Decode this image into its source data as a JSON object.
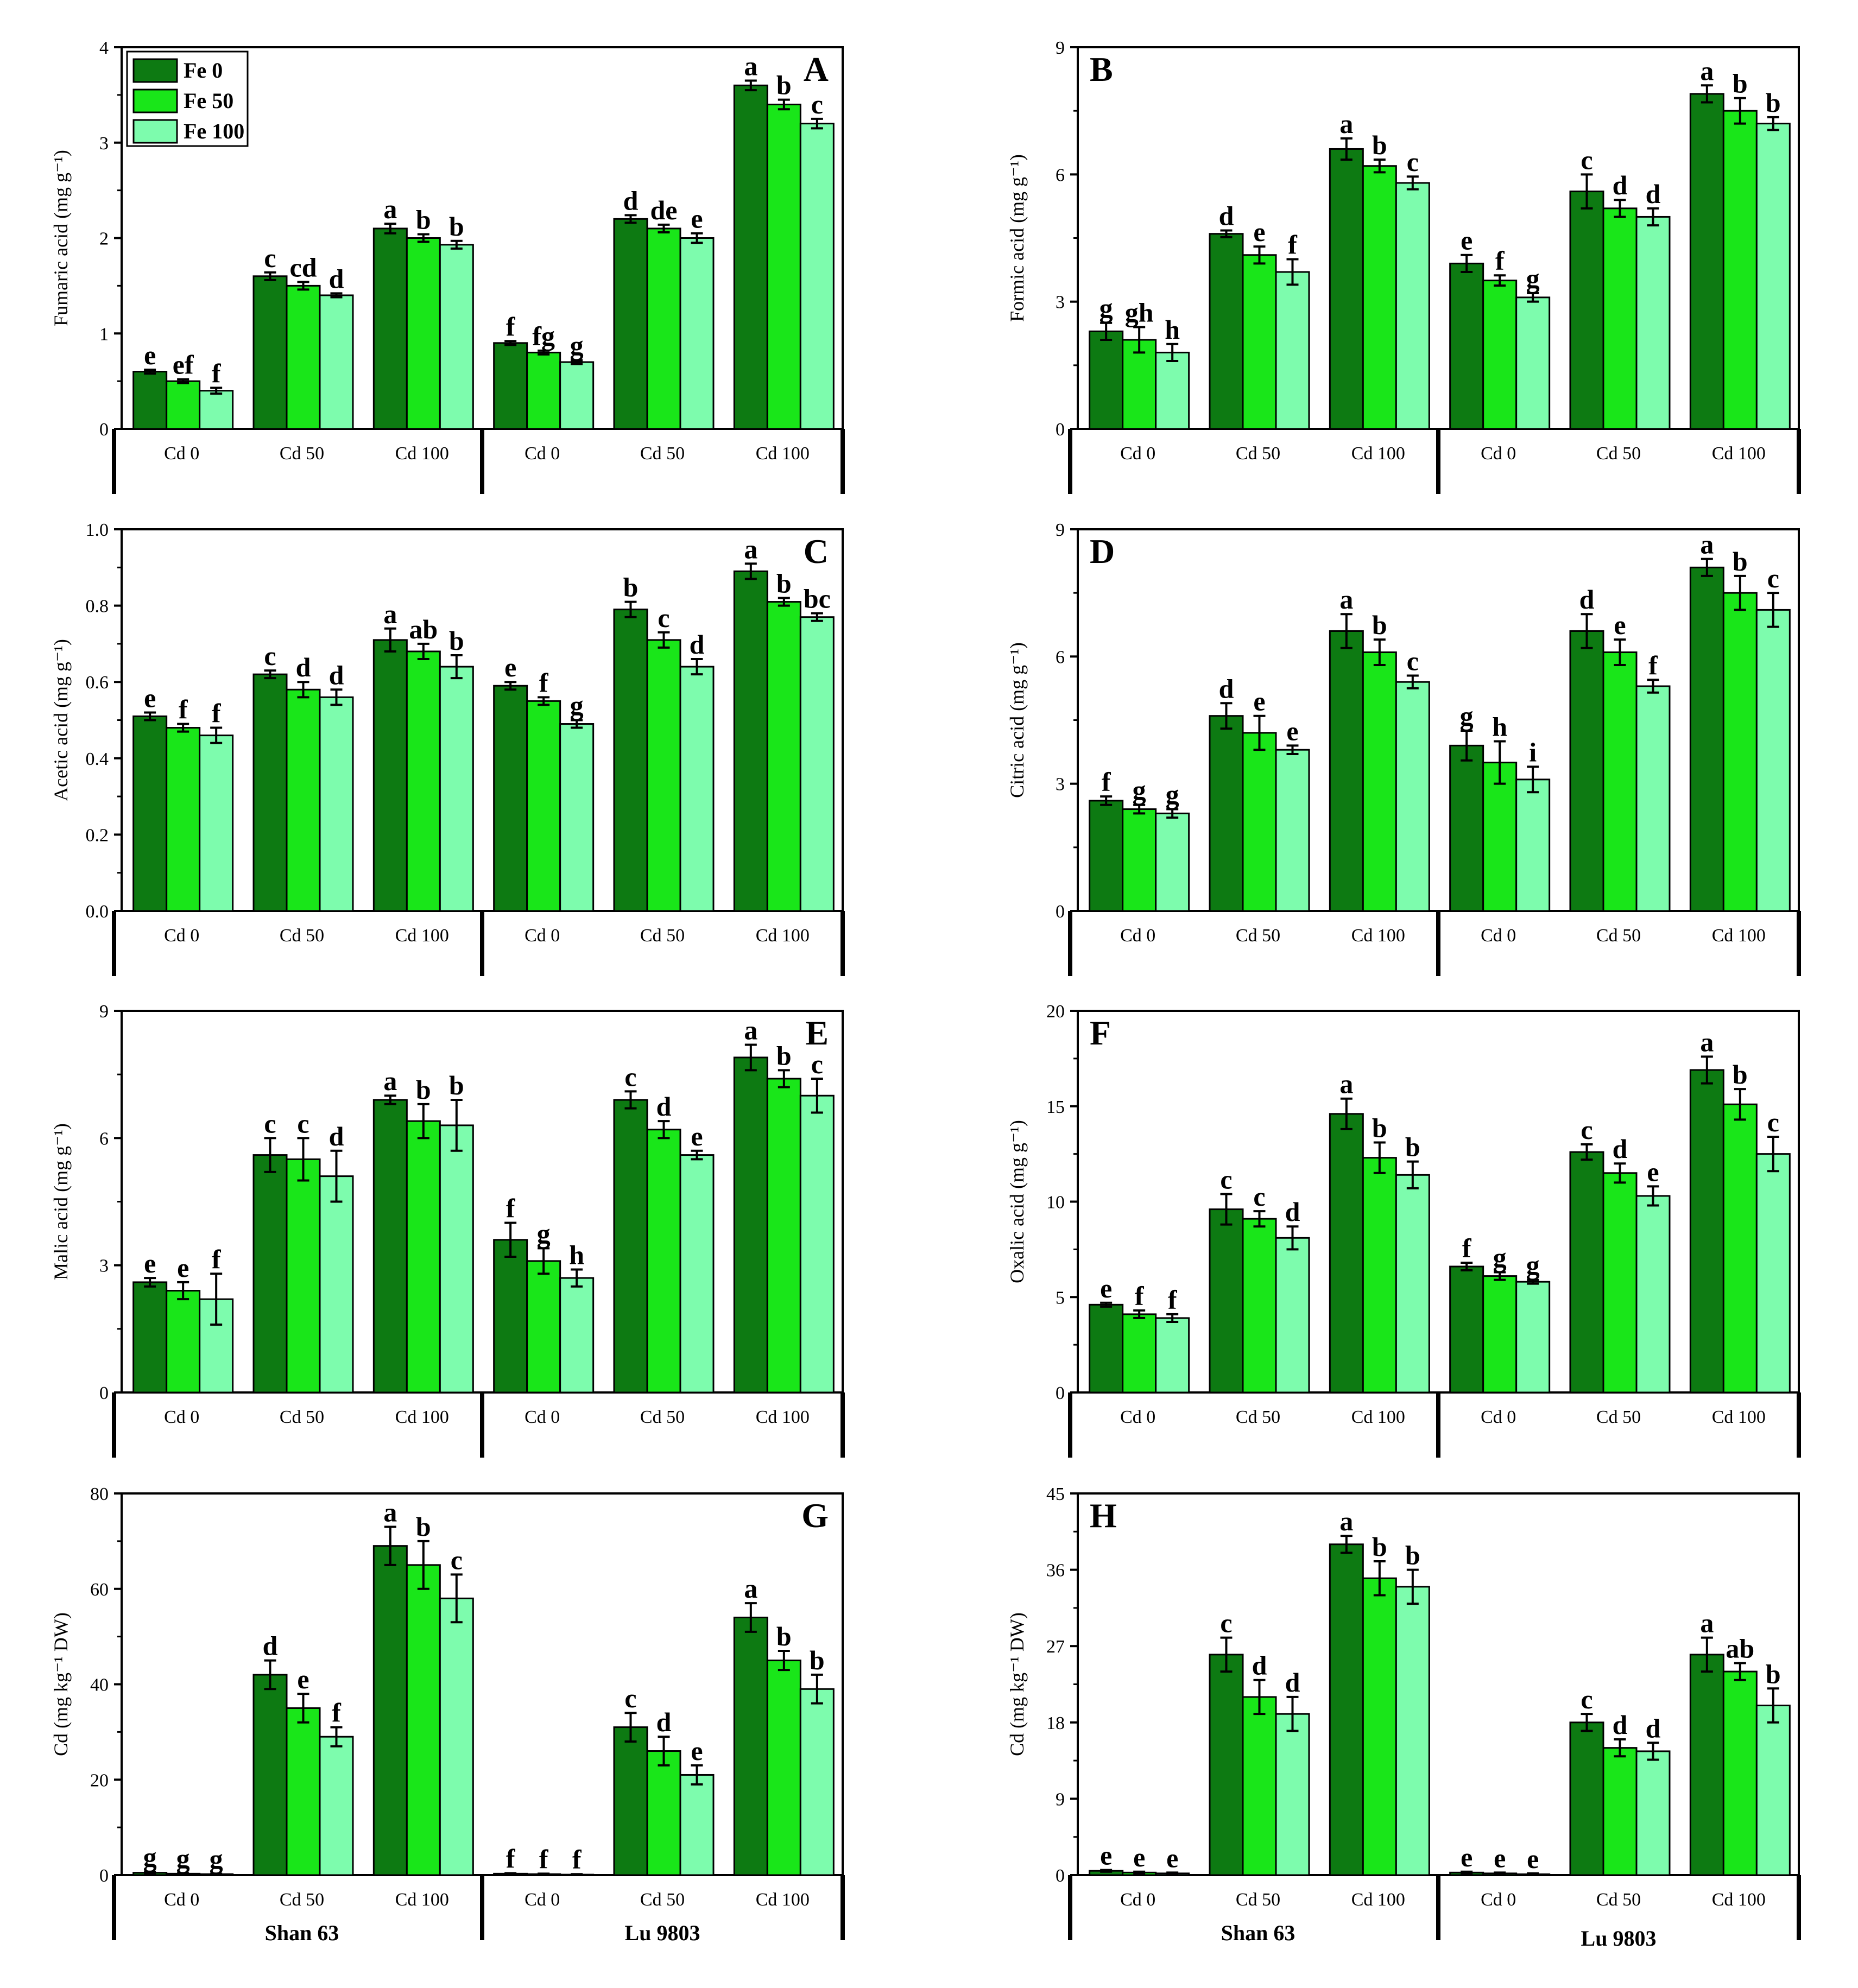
{
  "colors": {
    "Fe 0": "#0d7a12",
    "Fe 50": "#19e619",
    "Fe 100": "#7dfcad"
  },
  "legend": [
    "Fe 0",
    "Fe 50",
    "Fe 100"
  ],
  "cultivars": [
    "Shan 63",
    "Lu 9803"
  ],
  "chart_data": [
    {
      "panel": "A",
      "type": "bar",
      "ylabel": "Fumaric acid (mg g⁻¹)",
      "ylim": [
        0,
        4
      ],
      "yticks": [
        0,
        1,
        2,
        3,
        4
      ],
      "categories": [
        "Cd 0",
        "Cd 50",
        "Cd 100",
        "Cd 0",
        "Cd 50",
        "Cd 100"
      ],
      "groups": [
        "Shan 63",
        "Lu 9803"
      ],
      "series": [
        {
          "name": "Fe 0",
          "values": [
            0.6,
            1.6,
            2.1,
            0.9,
            2.2,
            3.6
          ],
          "errors": [
            0.02,
            0.04,
            0.05,
            0.02,
            0.04,
            0.05
          ],
          "letters": [
            "e",
            "c",
            "a",
            "f",
            "d",
            "a"
          ]
        },
        {
          "name": "Fe 50",
          "values": [
            0.5,
            1.5,
            2.0,
            0.8,
            2.1,
            3.4
          ],
          "errors": [
            0.02,
            0.04,
            0.04,
            0.02,
            0.04,
            0.05
          ],
          "letters": [
            "ef",
            "cd",
            "b",
            "fg",
            "de",
            "b"
          ]
        },
        {
          "name": "Fe 100",
          "values": [
            0.4,
            1.4,
            1.93,
            0.7,
            2.0,
            3.2
          ],
          "errors": [
            0.03,
            0.02,
            0.04,
            0.02,
            0.05,
            0.05
          ],
          "letters": [
            "f",
            "d",
            "b",
            "g",
            "e",
            "c"
          ]
        }
      ]
    },
    {
      "panel": "B",
      "type": "bar",
      "ylabel": "Formic acid (mg g⁻¹)",
      "ylim": [
        0,
        9
      ],
      "yticks": [
        0,
        3,
        6,
        9
      ],
      "categories": [
        "Cd 0",
        "Cd 50",
        "Cd 100",
        "Cd 0",
        "Cd 50",
        "Cd 100"
      ],
      "groups": [
        "Shan 63",
        "Lu 9803"
      ],
      "series": [
        {
          "name": "Fe 0",
          "values": [
            2.3,
            4.6,
            6.6,
            3.9,
            5.6,
            7.9
          ],
          "errors": [
            0.2,
            0.08,
            0.25,
            0.2,
            0.4,
            0.2
          ],
          "letters": [
            "g",
            "d",
            "a",
            "e",
            "c",
            "a"
          ]
        },
        {
          "name": "Fe 50",
          "values": [
            2.1,
            4.1,
            6.2,
            3.5,
            5.2,
            7.5
          ],
          "errors": [
            0.3,
            0.2,
            0.15,
            0.12,
            0.2,
            0.3
          ],
          "letters": [
            "gh",
            "e",
            "b",
            "f",
            "d",
            "b"
          ]
        },
        {
          "name": "Fe 100",
          "values": [
            1.8,
            3.7,
            5.8,
            3.1,
            5.0,
            7.2
          ],
          "errors": [
            0.2,
            0.3,
            0.15,
            0.1,
            0.2,
            0.15
          ],
          "letters": [
            "h",
            "f",
            "c",
            "g",
            "d",
            "b"
          ]
        }
      ]
    },
    {
      "panel": "C",
      "type": "bar",
      "ylabel": "Acetic acid (mg g⁻¹)",
      "ylim": [
        0,
        1.0
      ],
      "yticks": [
        "0.0",
        "0.2",
        "0.4",
        "0.6",
        "0.8",
        "1.0"
      ],
      "categories": [
        "Cd 0",
        "Cd 50",
        "Cd 100",
        "Cd 0",
        "Cd 50",
        "Cd 100"
      ],
      "groups": [
        "Shan 63",
        "Lu 9803"
      ],
      "series": [
        {
          "name": "Fe 0",
          "values": [
            0.51,
            0.62,
            0.71,
            0.59,
            0.79,
            0.89
          ],
          "errors": [
            0.01,
            0.01,
            0.03,
            0.01,
            0.02,
            0.02
          ],
          "letters": [
            "e",
            "c",
            "a",
            "e",
            "b",
            "a"
          ]
        },
        {
          "name": "Fe 50",
          "values": [
            0.48,
            0.58,
            0.68,
            0.55,
            0.71,
            0.81
          ],
          "errors": [
            0.01,
            0.02,
            0.02,
            0.01,
            0.02,
            0.01
          ],
          "letters": [
            "f",
            "d",
            "ab",
            "f",
            "c",
            "b"
          ]
        },
        {
          "name": "Fe 100",
          "values": [
            0.46,
            0.56,
            0.64,
            0.49,
            0.64,
            0.77
          ],
          "errors": [
            0.02,
            0.02,
            0.03,
            0.01,
            0.02,
            0.01
          ],
          "letters": [
            "f",
            "d",
            "b",
            "g",
            "d",
            "bc"
          ]
        }
      ]
    },
    {
      "panel": "D",
      "type": "bar",
      "ylabel": "Citric acid (mg g⁻¹)",
      "ylim": [
        0,
        9
      ],
      "yticks": [
        0,
        3,
        6,
        9
      ],
      "categories": [
        "Cd 0",
        "Cd 50",
        "Cd 100",
        "Cd 0",
        "Cd 50",
        "Cd 100"
      ],
      "groups": [
        "Shan 63",
        "Lu 9803"
      ],
      "series": [
        {
          "name": "Fe 0",
          "values": [
            2.6,
            4.6,
            6.6,
            3.9,
            6.6,
            8.1
          ],
          "errors": [
            0.1,
            0.3,
            0.4,
            0.35,
            0.4,
            0.2
          ],
          "letters": [
            "f",
            "d",
            "a",
            "g",
            "d",
            "a"
          ]
        },
        {
          "name": "Fe 50",
          "values": [
            2.4,
            4.2,
            6.1,
            3.5,
            6.1,
            7.5
          ],
          "errors": [
            0.1,
            0.4,
            0.3,
            0.5,
            0.3,
            0.4
          ],
          "letters": [
            "g",
            "e",
            "b",
            "h",
            "e",
            "b"
          ]
        },
        {
          "name": "Fe 100",
          "values": [
            2.3,
            3.8,
            5.4,
            3.1,
            5.3,
            7.1
          ],
          "errors": [
            0.1,
            0.1,
            0.15,
            0.3,
            0.15,
            0.4
          ],
          "letters": [
            "g",
            "e",
            "c",
            "i",
            "f",
            "c"
          ]
        }
      ]
    },
    {
      "panel": "E",
      "type": "bar",
      "ylabel": "Malic acid (mg g⁻¹)",
      "ylim": [
        0,
        9
      ],
      "yticks": [
        0,
        3,
        6,
        9
      ],
      "categories": [
        "Cd 0",
        "Cd 50",
        "Cd 100",
        "Cd 0",
        "Cd 50",
        "Cd 100"
      ],
      "groups": [
        "Shan 63",
        "Lu 9803"
      ],
      "series": [
        {
          "name": "Fe 0",
          "values": [
            2.6,
            5.6,
            6.9,
            3.6,
            6.9,
            7.9
          ],
          "errors": [
            0.1,
            0.4,
            0.1,
            0.4,
            0.2,
            0.3
          ],
          "letters": [
            "e",
            "c",
            "a",
            "f",
            "c",
            "a"
          ]
        },
        {
          "name": "Fe 50",
          "values": [
            2.4,
            5.5,
            6.4,
            3.1,
            6.2,
            7.4
          ],
          "errors": [
            0.2,
            0.5,
            0.4,
            0.3,
            0.2,
            0.2
          ],
          "letters": [
            "e",
            "c",
            "b",
            "g",
            "d",
            "b"
          ]
        },
        {
          "name": "Fe 100",
          "values": [
            2.2,
            5.1,
            6.3,
            2.7,
            5.6,
            7.0
          ],
          "errors": [
            0.6,
            0.6,
            0.6,
            0.2,
            0.1,
            0.4
          ],
          "letters": [
            "f",
            "d",
            "b",
            "h",
            "e",
            "c"
          ]
        }
      ]
    },
    {
      "panel": "F",
      "type": "bar",
      "ylabel": "Oxalic acid (mg g⁻¹)",
      "ylim": [
        0,
        20
      ],
      "yticks": [
        0,
        5,
        10,
        15,
        20
      ],
      "categories": [
        "Cd 0",
        "Cd 50",
        "Cd 100",
        "Cd 0",
        "Cd 50",
        "Cd 100"
      ],
      "groups": [
        "Shan 63",
        "Lu 9803"
      ],
      "series": [
        {
          "name": "Fe 0",
          "values": [
            4.6,
            9.6,
            14.6,
            6.6,
            12.6,
            16.9
          ],
          "errors": [
            0.1,
            0.8,
            0.8,
            0.2,
            0.4,
            0.7
          ],
          "letters": [
            "e",
            "c",
            "a",
            "f",
            "c",
            "a"
          ]
        },
        {
          "name": "Fe 50",
          "values": [
            4.1,
            9.1,
            12.3,
            6.1,
            11.5,
            15.1
          ],
          "errors": [
            0.2,
            0.4,
            0.8,
            0.2,
            0.5,
            0.8
          ],
          "letters": [
            "f",
            "c",
            "b",
            "g",
            "d",
            "b"
          ]
        },
        {
          "name": "Fe 100",
          "values": [
            3.9,
            8.1,
            11.4,
            5.8,
            10.3,
            12.5
          ],
          "errors": [
            0.2,
            0.6,
            0.7,
            0.1,
            0.5,
            0.9
          ],
          "letters": [
            "f",
            "d",
            "b",
            "g",
            "e",
            "c"
          ]
        }
      ]
    },
    {
      "panel": "G",
      "type": "bar",
      "ylabel": "Cd (mg kg⁻¹ DW)",
      "ylim": [
        0,
        80
      ],
      "yticks": [
        0,
        20,
        40,
        60,
        80
      ],
      "categories": [
        "Cd 0",
        "Cd 50",
        "Cd 100",
        "Cd 0",
        "Cd 50",
        "Cd 100"
      ],
      "groups": [
        "Shan 63",
        "Lu 9803"
      ],
      "series": [
        {
          "name": "Fe 0",
          "values": [
            0.5,
            42,
            69,
            0.3,
            31,
            54
          ],
          "errors": [
            0.2,
            3,
            4,
            0.1,
            3,
            3
          ],
          "letters": [
            "g",
            "d",
            "a",
            "f",
            "c",
            "a"
          ]
        },
        {
          "name": "Fe 50",
          "values": [
            0.3,
            35,
            65,
            0.2,
            26,
            45
          ],
          "errors": [
            0.1,
            3,
            5,
            0.1,
            3,
            2
          ],
          "letters": [
            "g",
            "e",
            "b",
            "f",
            "d",
            "b"
          ]
        },
        {
          "name": "Fe 100",
          "values": [
            0.2,
            29,
            58,
            0.1,
            21,
            39
          ],
          "errors": [
            0.1,
            2,
            5,
            0.1,
            2,
            3
          ],
          "letters": [
            "g",
            "f",
            "c",
            "f",
            "e",
            "b"
          ]
        }
      ]
    },
    {
      "panel": "H",
      "type": "bar",
      "ylabel": "Cd (mg kg⁻¹ DW)",
      "ylim": [
        0,
        45
      ],
      "yticks": [
        0,
        9,
        18,
        27,
        36,
        45
      ],
      "categories": [
        "Cd 0",
        "Cd 50",
        "Cd 100",
        "Cd 0",
        "Cd 50",
        "Cd 100"
      ],
      "groups": [
        "Shan 63",
        "Lu 9803"
      ],
      "series": [
        {
          "name": "Fe 0",
          "values": [
            0.5,
            26,
            39,
            0.3,
            18,
            26
          ],
          "errors": [
            0.1,
            2,
            1,
            0.1,
            1,
            2
          ],
          "letters": [
            "e",
            "c",
            "a",
            "e",
            "c",
            "a"
          ]
        },
        {
          "name": "Fe 50",
          "values": [
            0.3,
            21,
            35,
            0.2,
            15,
            24
          ],
          "errors": [
            0.1,
            2,
            2,
            0.1,
            1,
            1
          ],
          "letters": [
            "e",
            "d",
            "b",
            "e",
            "d",
            "ab"
          ]
        },
        {
          "name": "Fe 100",
          "values": [
            0.2,
            19,
            34,
            0.1,
            14.6,
            20
          ],
          "errors": [
            0.1,
            2,
            2,
            0.1,
            1,
            2
          ],
          "letters": [
            "e",
            "d",
            "b",
            "e",
            "d",
            "b"
          ]
        }
      ]
    }
  ]
}
